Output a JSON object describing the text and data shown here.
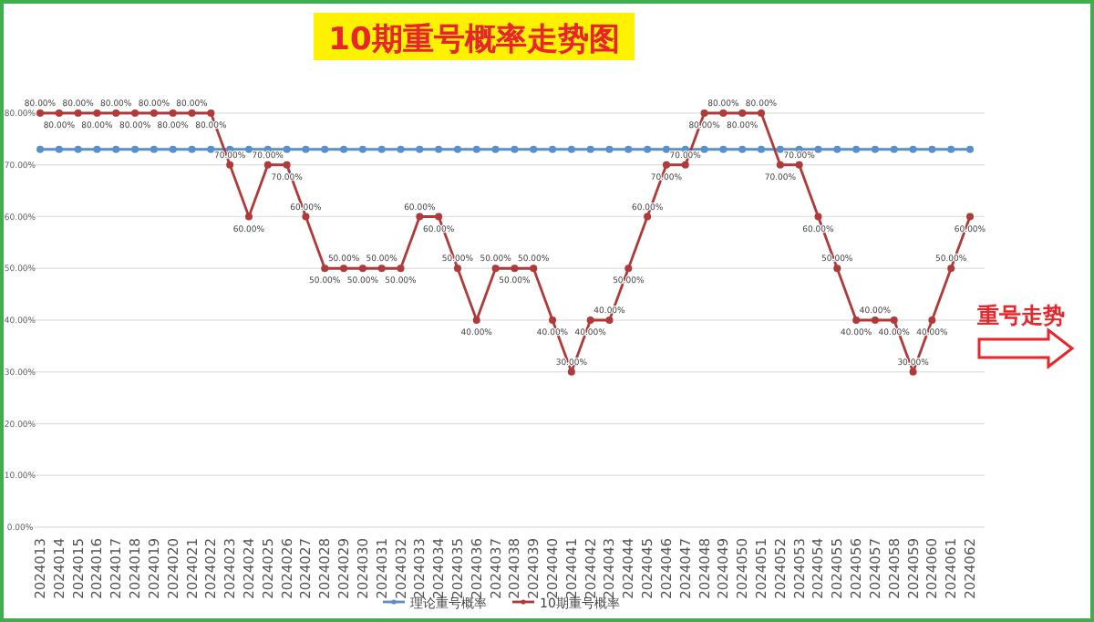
{
  "chart_data": {
    "type": "line",
    "title": "10期重号概率走势图",
    "categories": [
      "2024013",
      "2024014",
      "2024015",
      "2024016",
      "2024017",
      "2024018",
      "2024019",
      "2024020",
      "2024021",
      "2024022",
      "2024023",
      "2024024",
      "2024025",
      "2024026",
      "2024027",
      "2024028",
      "2024029",
      "2024030",
      "2024031",
      "2024032",
      "2024033",
      "2024034",
      "2024035",
      "2024036",
      "2024037",
      "2024038",
      "2024039",
      "2024040",
      "2024041",
      "2024042",
      "2024043",
      "2024044",
      "2024045",
      "2024046",
      "2024047",
      "2024048",
      "2024049",
      "2024050",
      "2024051",
      "2024052",
      "2024053",
      "2024054",
      "2024055",
      "2024056",
      "2024057",
      "2024058",
      "2024059",
      "2024060",
      "2024061",
      "2024062"
    ],
    "series": [
      {
        "name": "理论重号概率",
        "color": "#5b8fc9",
        "values": [
          73,
          73,
          73,
          73,
          73,
          73,
          73,
          73,
          73,
          73,
          73,
          73,
          73,
          73,
          73,
          73,
          73,
          73,
          73,
          73,
          73,
          73,
          73,
          73,
          73,
          73,
          73,
          73,
          73,
          73,
          73,
          73,
          73,
          73,
          73,
          73,
          73,
          73,
          73,
          73,
          73,
          73,
          73,
          73,
          73,
          73,
          73,
          73,
          73,
          73
        ]
      },
      {
        "name": "10期重号概率",
        "color": "#b03a3a",
        "values": [
          80,
          80,
          80,
          80,
          80,
          80,
          80,
          80,
          80,
          80,
          70,
          60,
          70,
          70,
          60,
          50,
          50,
          50,
          50,
          50,
          60,
          60,
          50,
          40,
          50,
          50,
          50,
          40,
          30,
          40,
          40,
          50,
          60,
          70,
          70,
          80,
          80,
          80,
          80,
          70,
          70,
          60,
          50,
          40,
          40,
          40,
          30,
          40,
          50,
          60
        ],
        "value_labels": [
          "80.00%",
          "80.00%",
          "80.00%",
          "80.00%",
          "80.00%",
          "80.00%",
          "80.00%",
          "80.00%",
          "80.00%",
          "80.00%",
          "70.00%",
          "60.00%",
          "70.00%",
          "70.00%",
          "60.00%",
          "50.00%",
          "50.00%",
          "50.00%",
          "50.00%",
          "50.00%",
          "60.00%",
          "60.00%",
          "50.00%",
          "40.00%",
          "50.00%",
          "50.00%",
          "50.00%",
          "40.00%",
          "30.00%",
          "40.00%",
          "40.00%",
          "50.00%",
          "60.00%",
          "70.00%",
          "70.00%",
          "80.00%",
          "80.00%",
          "80.00%",
          "80.00%",
          "70.00%",
          "70.00%",
          "60.00%",
          "50.00%",
          "40.00%",
          "40.00%",
          "40.00%",
          "30.00%",
          "40.00%",
          "50.00%",
          "60.00%"
        ]
      }
    ],
    "ylim": [
      0,
      80
    ],
    "yticks": [
      {
        "value": 0,
        "label": "0.00%"
      },
      {
        "value": 10,
        "label": "10.00%"
      },
      {
        "value": 20,
        "label": "20.00%"
      },
      {
        "value": 30,
        "label": "30.00%"
      },
      {
        "value": 40,
        "label": "40.00%"
      },
      {
        "value": 50,
        "label": "50.00%"
      },
      {
        "value": 60,
        "label": "60.00%"
      },
      {
        "value": 70,
        "label": "70.00%"
      },
      {
        "value": 80,
        "label": "80.00%"
      }
    ],
    "grid": "y",
    "legend": "bottom",
    "marker": "circle",
    "line_style": "solid",
    "annotations": [
      "重号走势"
    ]
  }
}
